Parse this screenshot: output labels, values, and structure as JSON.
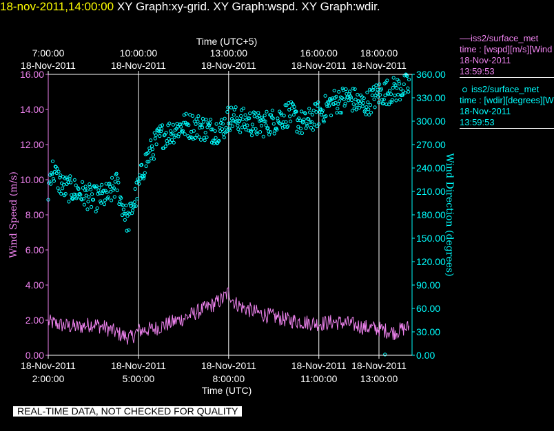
{
  "header": {
    "timestamp": "18-nov-2011,14:00:00",
    "titles": "XY Graph:xy-grid.  XY Graph:wspd.  XY Graph:wdir."
  },
  "quality_note": "REAL-TIME DATA, NOT CHECKED FOR QUALITY",
  "legend": {
    "wspd": {
      "series": "iss2/surface_met",
      "field": "time : [wspd][m/s][Wind",
      "date": "18-Nov-2011",
      "time": "13:59:53"
    },
    "wdir": {
      "series": "iss2/surface_met",
      "field": "time : [wdir][degrees][W",
      "date": "18-Nov-2011",
      "time": "13:59:53"
    }
  },
  "colors": {
    "background": "#000000",
    "wspd": "#ee82ee",
    "wdir": "#00ffff",
    "text": "#ffffff",
    "timestamp": "#ffff00",
    "grid": "#ffffff"
  },
  "chart_data": {
    "type": "line",
    "x_bottom": {
      "label": "Time (UTC)",
      "range": [
        "2011-11-18 02:00",
        "2011-11-18 14:00"
      ],
      "ticks": [
        {
          "date": "18-Nov-2011",
          "time": "2:00:00"
        },
        {
          "date": "18-Nov-2011",
          "time": "5:00:00"
        },
        {
          "date": "18-Nov-2011",
          "time": "8:00:00"
        },
        {
          "date": "18-Nov-2011",
          "time": "11:00:00"
        },
        {
          "date": "18-Nov-2011",
          "time": "13:00:00"
        }
      ]
    },
    "x_top": {
      "label": "Time (UTC+5)",
      "ticks": [
        {
          "date": "18-Nov-2011",
          "time": "7:00:00"
        },
        {
          "date": "18-Nov-2011",
          "time": "10:00:00"
        },
        {
          "date": "18-Nov-2011",
          "time": "13:00:00"
        },
        {
          "date": "18-Nov-2011",
          "time": "16:00:00"
        },
        {
          "date": "18-Nov-2011",
          "time": "18:00:00"
        }
      ]
    },
    "y_left": {
      "label": "Wind Speed (m/s)",
      "range": [
        0,
        16
      ],
      "ticks": [
        "0.00",
        "2.00",
        "4.00",
        "6.00",
        "8.00",
        "10.00",
        "12.00",
        "14.00",
        "16.00"
      ]
    },
    "y_right": {
      "label": "Wind Direction (degrees)",
      "range": [
        0,
        360
      ],
      "ticks": [
        "0.00",
        "30.00",
        "60.00",
        "90.00",
        "120.00",
        "150.00",
        "180.00",
        "210.00",
        "240.00",
        "270.00",
        "300.00",
        "330.00",
        "360.00"
      ]
    },
    "grid": "vertical",
    "series": [
      {
        "name": "iss2/surface_met wspd",
        "axis": "left",
        "style": "line",
        "points": [
          [
            2.0,
            1.9
          ],
          [
            2.5,
            1.7
          ],
          [
            3.0,
            1.6
          ],
          [
            3.5,
            1.8
          ],
          [
            4.0,
            1.5
          ],
          [
            4.5,
            1.1
          ],
          [
            4.75,
            1.0
          ],
          [
            5.0,
            1.4
          ],
          [
            5.5,
            1.5
          ],
          [
            6.0,
            1.8
          ],
          [
            6.5,
            2.1
          ],
          [
            7.0,
            2.5
          ],
          [
            7.5,
            2.9
          ],
          [
            7.8,
            3.2
          ],
          [
            8.0,
            3.6
          ],
          [
            8.2,
            3.0
          ],
          [
            8.5,
            2.7
          ],
          [
            9.0,
            2.4
          ],
          [
            9.5,
            2.2
          ],
          [
            10.0,
            2.0
          ],
          [
            10.5,
            1.9
          ],
          [
            11.0,
            1.8
          ],
          [
            11.5,
            1.9
          ],
          [
            12.0,
            1.8
          ],
          [
            12.5,
            1.6
          ],
          [
            13.0,
            1.5
          ],
          [
            13.5,
            1.3
          ],
          [
            13.8,
            1.5
          ],
          [
            14.0,
            1.6
          ]
        ]
      },
      {
        "name": "iss2/surface_met wdir",
        "axis": "right",
        "style": "markers",
        "points": [
          [
            2.0,
            210
          ],
          [
            2.1,
            240
          ],
          [
            2.5,
            215
          ],
          [
            3.0,
            210
          ],
          [
            3.5,
            200
          ],
          [
            4.0,
            205
          ],
          [
            4.3,
            220
          ],
          [
            4.4,
            200
          ],
          [
            4.5,
            190
          ],
          [
            4.65,
            170
          ],
          [
            4.8,
            190
          ],
          [
            5.0,
            215
          ],
          [
            5.2,
            245
          ],
          [
            5.4,
            260
          ],
          [
            5.7,
            280
          ],
          [
            6.0,
            285
          ],
          [
            6.5,
            295
          ],
          [
            7.0,
            293
          ],
          [
            7.5,
            288
          ],
          [
            7.8,
            290
          ],
          [
            8.0,
            305
          ],
          [
            8.5,
            300
          ],
          [
            9.0,
            295
          ],
          [
            9.5,
            300
          ],
          [
            10.0,
            310
          ],
          [
            10.5,
            295
          ],
          [
            11.0,
            310
          ],
          [
            11.5,
            325
          ],
          [
            12.0,
            330
          ],
          [
            12.5,
            320
          ],
          [
            13.0,
            335
          ],
          [
            13.5,
            340
          ],
          [
            14.0,
            345
          ]
        ]
      }
    ]
  }
}
